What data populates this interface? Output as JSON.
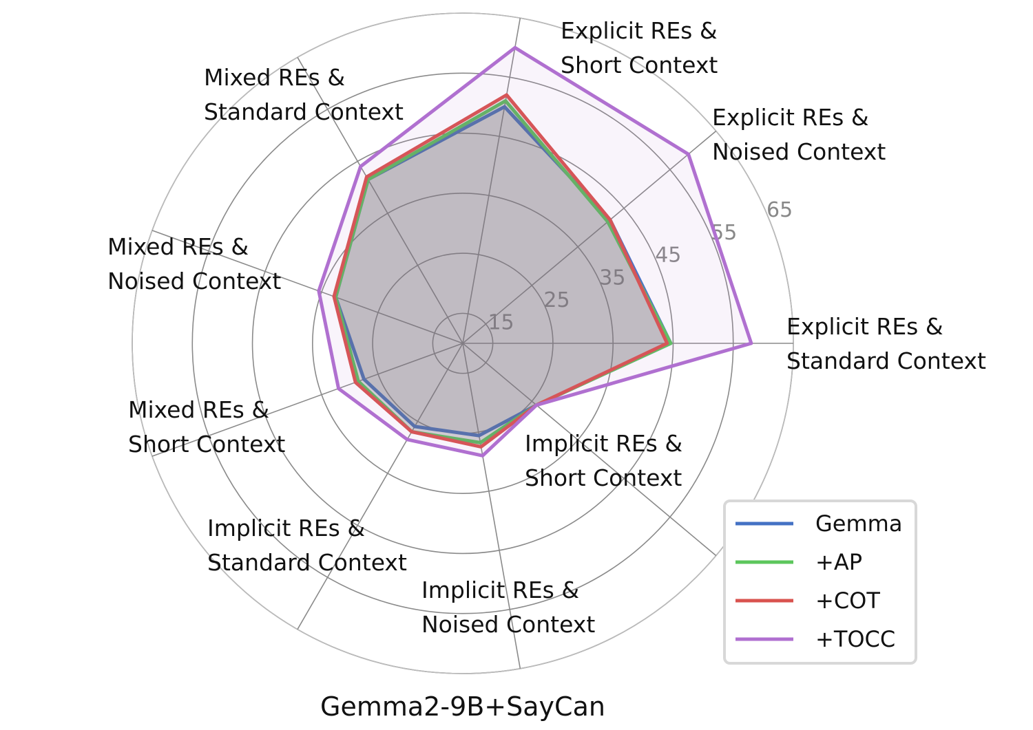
{
  "chart_data": {
    "type": "radar",
    "title": "Gemma2-9B+SayCan",
    "categories": [
      [
        "Explicit REs &",
        "Standard Context"
      ],
      [
        "Explicit REs &",
        "Noised Context"
      ],
      [
        "Explicit REs &",
        "Short Context"
      ],
      [
        "Mixed REs &",
        "Standard Context"
      ],
      [
        "Mixed REs &",
        "Noised Context"
      ],
      [
        "Mixed REs &",
        "Short Context"
      ],
      [
        "Implicit REs &",
        "Standard Context"
      ],
      [
        "Implicit REs &",
        "Noised Context"
      ],
      [
        "Implicit REs &",
        "Short Context"
      ]
    ],
    "radial_ticks": [
      "15",
      "25",
      "35",
      "45",
      "55",
      "65"
    ],
    "rlim": [
      10,
      65
    ],
    "grid": true,
    "legend_position": "bottom-right",
    "series": [
      {
        "name": "Gemma",
        "color": "#4472c4",
        "values": [
          44.6,
          42.0,
          50.0,
          41.5,
          32.5,
          27.5,
          26.0,
          25.6,
          26.0
        ]
      },
      {
        "name": "+AP",
        "color": "#5cc65c",
        "values": [
          44.6,
          41.5,
          51.0,
          41.5,
          32.5,
          28.5,
          27.0,
          26.8,
          26.0
        ]
      },
      {
        "name": "+COT",
        "color": "#d9534f",
        "values": [
          44.0,
          42.0,
          52.0,
          42.0,
          32.8,
          29.0,
          27.0,
          27.5,
          26.0
        ]
      },
      {
        "name": "+TOCC",
        "color": "#b070d0",
        "values": [
          58.0,
          59.0,
          60.0,
          44.0,
          35.5,
          32.0,
          28.5,
          29.0,
          26.0
        ]
      }
    ],
    "fill_color": "#b070d0"
  }
}
